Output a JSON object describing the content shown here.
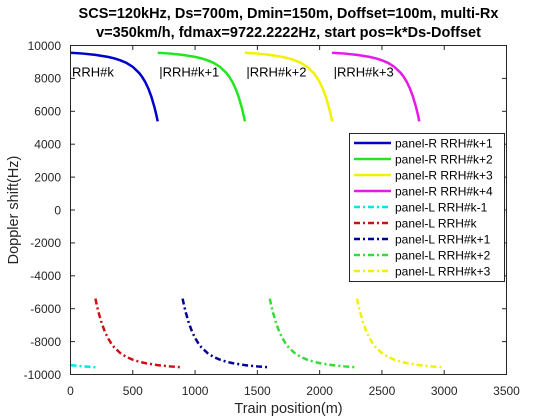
{
  "chart_data": {
    "type": "line",
    "title": [
      "SCS=120kHz, Ds=700m, Dmin=150m, Doffset=100m, multi-Rx",
      "v=350km/h, fdmax=9722.2222Hz, start pos=k*Ds-Doffset"
    ],
    "xlabel": "Train position(m)",
    "ylabel": "Doppler shift(Hz)",
    "xlim": [
      0,
      3500
    ],
    "ylim": [
      -10000,
      10000
    ],
    "xticks": [
      0,
      500,
      1000,
      1500,
      2000,
      2500,
      3000,
      3500
    ],
    "yticks": [
      -10000,
      -8000,
      -6000,
      -4000,
      -2000,
      0,
      2000,
      4000,
      6000,
      8000,
      10000
    ],
    "grid": false,
    "legend_location": "east",
    "series": [
      {
        "name": "panel-R RRH#k+1",
        "color": "#0000cc",
        "line_style": "solid",
        "x": [
          0,
          100,
          200,
          300,
          350,
          400,
          450,
          500,
          550,
          575,
          600,
          625,
          650,
          675,
          690,
          700
        ],
        "y": [
          9560,
          9510,
          9430,
          9310,
          9220,
          9100,
          8940,
          8700,
          8340,
          8090,
          7780,
          7380,
          6870,
          6220,
          5750,
          5390
        ]
      },
      {
        "name": "panel-R RRH#k+2",
        "color": "#22e622",
        "line_style": "solid",
        "x": [
          700,
          800,
          900,
          1000,
          1050,
          1100,
          1150,
          1200,
          1250,
          1275,
          1300,
          1325,
          1350,
          1375,
          1390,
          1400
        ],
        "y": [
          9560,
          9510,
          9430,
          9310,
          9220,
          9100,
          8940,
          8700,
          8340,
          8090,
          7780,
          7380,
          6870,
          6220,
          5750,
          5390
        ]
      },
      {
        "name": "panel-R RRH#k+3",
        "color": "#f2f200",
        "line_style": "solid",
        "x": [
          1400,
          1500,
          1600,
          1700,
          1750,
          1800,
          1850,
          1900,
          1950,
          1975,
          2000,
          2025,
          2050,
          2075,
          2090,
          2100
        ],
        "y": [
          9560,
          9510,
          9430,
          9310,
          9220,
          9100,
          8940,
          8700,
          8340,
          8090,
          7780,
          7380,
          6870,
          6220,
          5750,
          5390
        ]
      },
      {
        "name": "panel-R RRH#k+4",
        "color": "#e619e6",
        "line_style": "solid",
        "x": [
          2100,
          2200,
          2300,
          2400,
          2450,
          2500,
          2550,
          2600,
          2650,
          2675,
          2700,
          2725,
          2750,
          2775,
          2790,
          2800
        ],
        "y": [
          9560,
          9510,
          9430,
          9310,
          9220,
          9100,
          8940,
          8700,
          8340,
          8090,
          7780,
          7380,
          6870,
          6220,
          5750,
          5390
        ]
      },
      {
        "name": "panel-L RRH#k-1",
        "color": "#00e5e5",
        "line_style": "dashdot",
        "x": [
          0,
          50,
          100,
          150,
          200
        ],
        "y": [
          -9430,
          -9470,
          -9510,
          -9530,
          -9560
        ]
      },
      {
        "name": "panel-L RRH#k",
        "color": "#cc1010",
        "line_style": "dashdot",
        "x": [
          200,
          210,
          225,
          250,
          275,
          300,
          325,
          350,
          400,
          450,
          500,
          550,
          600,
          700,
          800,
          900
        ],
        "y": [
          -5390,
          -5750,
          -6220,
          -6870,
          -7380,
          -7780,
          -8090,
          -8340,
          -8700,
          -8940,
          -9100,
          -9220,
          -9310,
          -9430,
          -9510,
          -9560
        ]
      },
      {
        "name": "panel-L RRH#k+1",
        "color": "#000099",
        "line_style": "dashdot",
        "x": [
          900,
          910,
          925,
          950,
          975,
          1000,
          1025,
          1050,
          1100,
          1150,
          1200,
          1250,
          1300,
          1400,
          1500,
          1600
        ],
        "y": [
          -5390,
          -5750,
          -6220,
          -6870,
          -7380,
          -7780,
          -8090,
          -8340,
          -8700,
          -8940,
          -9100,
          -9220,
          -9310,
          -9430,
          -9510,
          -9560
        ]
      },
      {
        "name": "panel-L RRH#k+2",
        "color": "#33dd33",
        "line_style": "dashdot",
        "x": [
          1600,
          1610,
          1625,
          1650,
          1675,
          1700,
          1725,
          1750,
          1800,
          1850,
          1900,
          1950,
          2000,
          2100,
          2200,
          2300
        ],
        "y": [
          -5390,
          -5750,
          -6220,
          -6870,
          -7380,
          -7780,
          -8090,
          -8340,
          -8700,
          -8940,
          -9100,
          -9220,
          -9310,
          -9430,
          -9510,
          -9560
        ]
      },
      {
        "name": "panel-L RRH#k+3",
        "color": "#f0f000",
        "line_style": "dashdot",
        "x": [
          2300,
          2310,
          2325,
          2350,
          2375,
          2400,
          2425,
          2450,
          2500,
          2550,
          2600,
          2650,
          2700,
          2800,
          2900,
          3000
        ],
        "y": [
          -5390,
          -5750,
          -6220,
          -6870,
          -7380,
          -7780,
          -8090,
          -8340,
          -8700,
          -8940,
          -9100,
          -9220,
          -9310,
          -9430,
          -9510,
          -9560
        ]
      }
    ],
    "annotations": [
      {
        "text": "RRH#k",
        "x": 0,
        "y": 8400
      },
      {
        "text": "|RRH#k+1",
        "x": 700,
        "y": 8400
      },
      {
        "text": "|RRH#k+2",
        "x": 1400,
        "y": 8400
      },
      {
        "text": "|RRH#k+3",
        "x": 2100,
        "y": 8400
      }
    ]
  }
}
